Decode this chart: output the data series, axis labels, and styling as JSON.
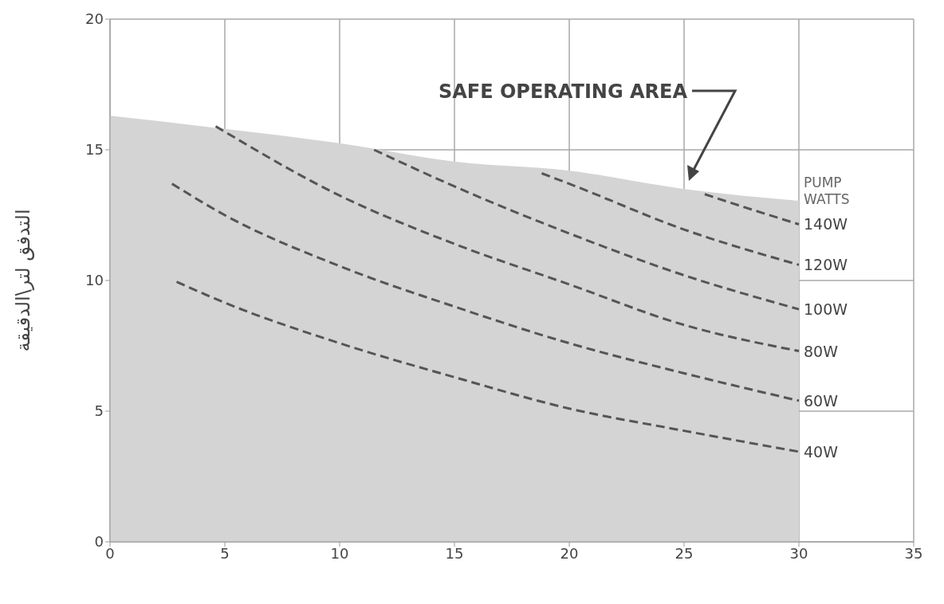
{
  "chart_data": {
    "type": "line",
    "ylabel": "التدفق لتر\\الدقيقة",
    "legend_title": "PUMP WATTS",
    "annotations": [
      "SAFE OPERATING AREA"
    ],
    "xlim": [
      0,
      35
    ],
    "xticks": [
      0,
      5,
      10,
      15,
      20,
      25,
      30,
      35
    ],
    "ylim": [
      0,
      20
    ],
    "yticks": [
      0,
      5,
      10,
      15,
      20
    ],
    "grid": true,
    "line_style": "dashed",
    "marker": "none",
    "series": [
      {
        "type": "area",
        "color": "#d4d4d4",
        "x": [
          0,
          5,
          10,
          15,
          20,
          25,
          30
        ],
        "values": [
          16.3,
          15.8,
          15.25,
          14.55,
          14.2,
          13.5,
          13.05
        ]
      },
      {
        "name": "140W",
        "color": "#555555",
        "x": [
          25.9,
          28,
          30
        ],
        "values": [
          13.3,
          12.7,
          12.15
        ]
      },
      {
        "name": "120W",
        "color": "#555555",
        "x": [
          18.8,
          20,
          25,
          30
        ],
        "values": [
          14.1,
          13.7,
          11.95,
          10.6
        ]
      },
      {
        "name": "100W",
        "color": "#555555",
        "x": [
          11.5,
          15,
          20,
          25,
          30
        ],
        "values": [
          15.0,
          13.6,
          11.8,
          10.2,
          8.9
        ]
      },
      {
        "name": "80W",
        "color": "#555555",
        "x": [
          4.6,
          10,
          15,
          20,
          25,
          30
        ],
        "values": [
          15.9,
          13.25,
          11.4,
          9.85,
          8.3,
          7.3
        ]
      },
      {
        "name": "60W",
        "color": "#555555",
        "x": [
          2.7,
          5,
          10,
          15,
          20,
          25,
          30
        ],
        "values": [
          13.7,
          12.5,
          10.55,
          9.0,
          7.6,
          6.45,
          5.4
        ]
      },
      {
        "name": "40W",
        "color": "#555555",
        "x": [
          2.9,
          5,
          10,
          15,
          20,
          25,
          30
        ],
        "values": [
          9.95,
          9.15,
          7.6,
          6.3,
          5.1,
          4.25,
          3.45
        ]
      }
    ]
  }
}
